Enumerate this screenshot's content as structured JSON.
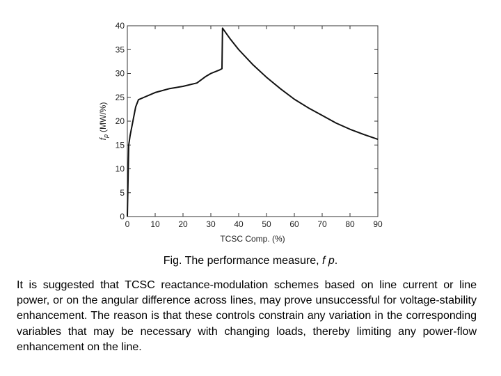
{
  "chart_data": {
    "type": "line",
    "xlabel": "TCSC Comp. (%)",
    "ylabel_main": "f",
    "ylabel_sub": "p",
    "ylabel_unit": "(MW/%)",
    "xlim": [
      0,
      90
    ],
    "ylim": [
      0,
      40
    ],
    "x_ticks": [
      0,
      10,
      20,
      30,
      40,
      50,
      60,
      70,
      80,
      90
    ],
    "y_ticks": [
      0,
      5,
      10,
      15,
      20,
      25,
      30,
      35,
      40
    ],
    "grid": false,
    "series": [
      {
        "x": [
          0,
          0.5,
          1,
          2,
          3,
          4,
          6,
          10,
          15,
          20,
          25,
          28,
          30,
          33,
          34,
          34.2,
          37,
          40,
          45,
          50,
          55,
          60,
          65,
          70,
          75,
          80,
          85,
          90
        ],
        "y": [
          0,
          15,
          17,
          20,
          23,
          24.5,
          25,
          26,
          26.8,
          27.3,
          28,
          29.3,
          30,
          30.7,
          31,
          39.5,
          37.2,
          35,
          31.9,
          29.2,
          26.8,
          24.6,
          22.8,
          21.2,
          19.6,
          18.3,
          17.2,
          16.2
        ]
      }
    ]
  },
  "caption": {
    "prefix": "Fig. The performance measure,",
    "var": "f p",
    "suffix": "."
  },
  "paragraph": "It is suggested that TCSC reactance-modulation schemes based on line current or line power, or on the angular difference across lines, may prove unsuccessful for voltage-stability enhancement. The reason is that these controls constrain any variation in the corresponding variables that may be necessary with changing loads, thereby limiting any power-flow enhancement on the line."
}
